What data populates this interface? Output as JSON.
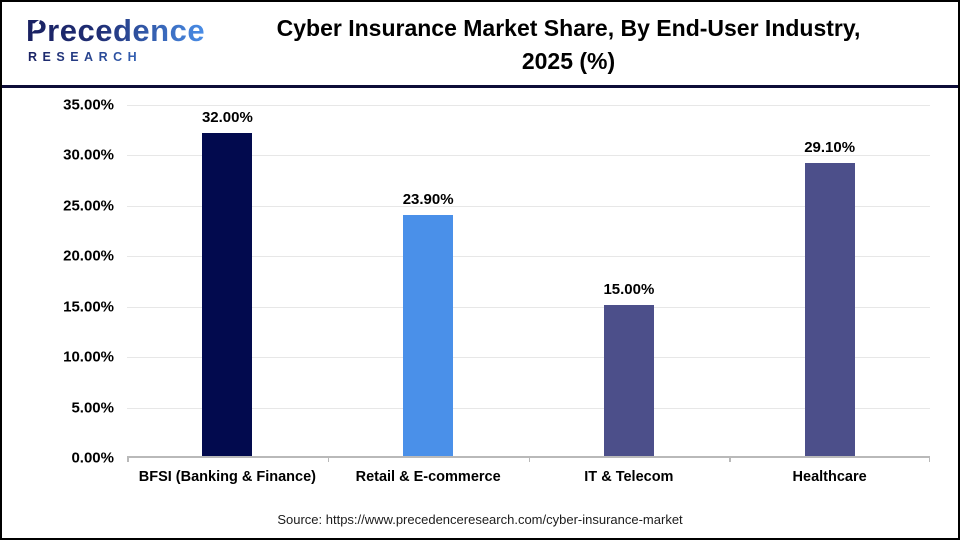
{
  "brand": {
    "name": "Precedence",
    "subname": "RESEARCH"
  },
  "title": {
    "line1": "Cyber Insurance Market Share, By End-User Industry,",
    "line2": "2025 (%)"
  },
  "source": "Source: https://www.precedenceresearch.com/cyber-insurance-market",
  "colors": {
    "brand_dark": "#1a2161",
    "brand_light": "#4a8fe9",
    "header_divider": "#0d0d38",
    "gridline": "#e7e7e7",
    "axis_line": "#b9b9b9",
    "text": "#000000"
  },
  "chart_data": {
    "type": "bar",
    "title": "Cyber Insurance Market Share, By End-User Industry, 2025 (%)",
    "categories": [
      "BFSI (Banking & Finance)",
      "Retail & E-commerce",
      "IT & Telecom",
      "Healthcare"
    ],
    "values": [
      32.0,
      23.9,
      15.0,
      29.1
    ],
    "value_labels": [
      "32.00%",
      "23.90%",
      "15.00%",
      "29.10%"
    ],
    "bar_colors": [
      "#020a4e",
      "#4a90e9",
      "#4c4f8a",
      "#4c4f8a"
    ],
    "xlabel": "",
    "ylabel": "",
    "ylim": [
      0,
      35
    ],
    "yticks": [
      "0.00%",
      "5.00%",
      "10.00%",
      "15.00%",
      "20.00%",
      "25.00%",
      "30.00%",
      "35.00%"
    ],
    "grid": true,
    "legend": false
  }
}
